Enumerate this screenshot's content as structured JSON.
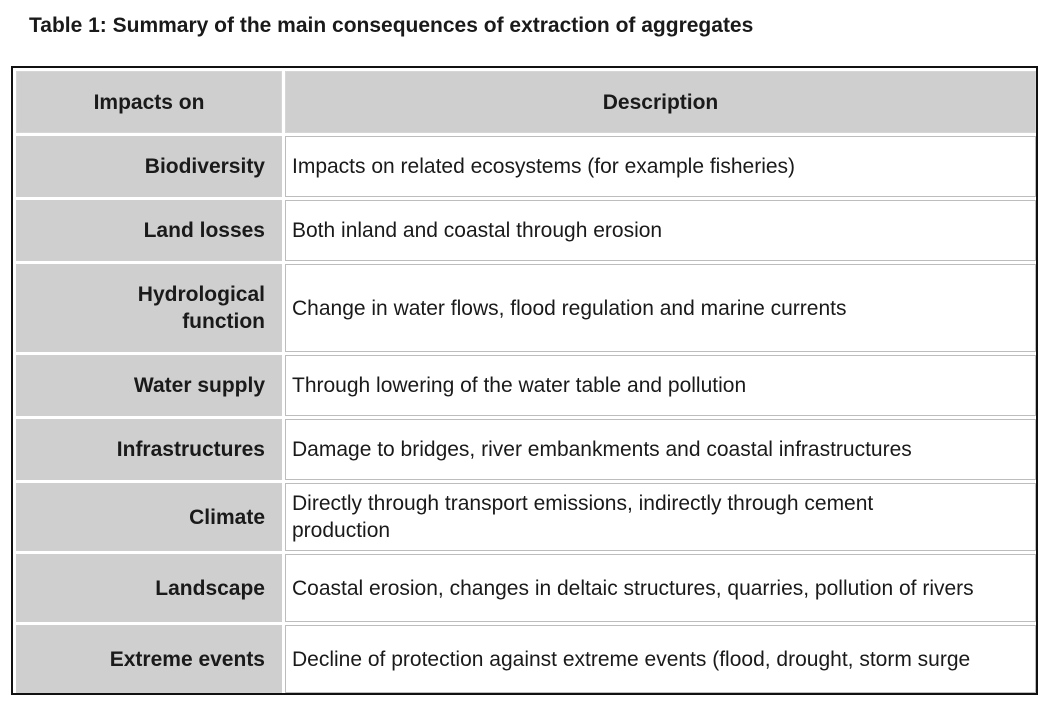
{
  "caption": "Table 1: Summary of the main consequences of extraction of aggregates",
  "table": {
    "headers": [
      "Impacts on",
      "Description"
    ],
    "rows": [
      {
        "impact": "Biodiversity",
        "description": "Impacts on related ecosystems (for example fisheries)"
      },
      {
        "impact": "Land losses",
        "description": "Both inland and coastal through erosion"
      },
      {
        "impact": "Hydrological function",
        "description": "Change in water flows, flood regulation and marine currents"
      },
      {
        "impact": "Water supply",
        "description": "Through lowering of the water table and pollution"
      },
      {
        "impact": "Infrastructures",
        "description": "Damage to bridges, river embankments and coastal infrastructures"
      },
      {
        "impact": "Climate",
        "description": "Directly through transport emissions, indirectly through cement production"
      },
      {
        "impact": "Landscape",
        "description": "Coastal erosion, changes in deltaic structures, quarries, pollution of rivers"
      },
      {
        "impact": "Extreme events",
        "description": "Decline of protection against extreme events (flood, drought, storm surge"
      }
    ]
  },
  "colors": {
    "header_bg": "#cfcfcf",
    "label_bg": "#cfcfcf",
    "cell_bg": "#ffffff",
    "outer_border": "#111111",
    "text": "#1a1a1a"
  }
}
